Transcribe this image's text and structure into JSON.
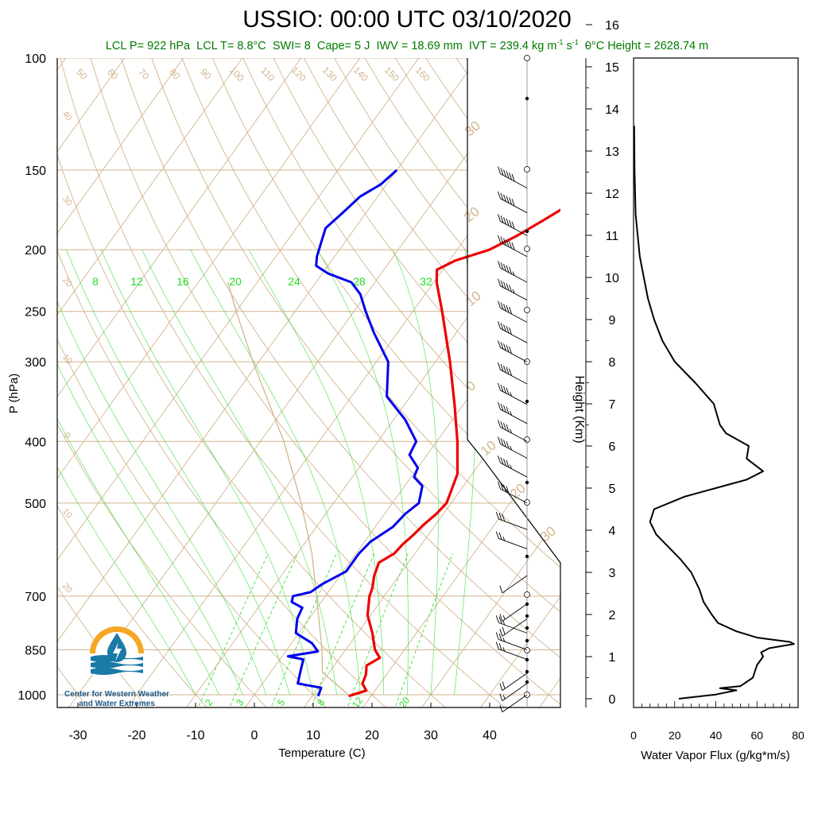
{
  "header": {
    "title": "USSIO: 00:00 UTC 03/10/2020",
    "subtitle": {
      "lcl_p": "LCL P= 922 hPa",
      "lcl_t": "LCL T= 8.8°C",
      "swi": "SWI= 8",
      "cape": "Cape= 5 J",
      "iwv": "IWV = 18.69 mm",
      "ivt_prefix": "IVT = 239.4 kg m",
      "ivt_exp1": "-1",
      "ivt_s": " s",
      "ivt_exp2": "-1",
      "zero_c": "0°C Height = 2628.74 m"
    }
  },
  "logo": {
    "line1": "Center for Western Weather",
    "line2": "and Water Extremes"
  },
  "colors": {
    "temperature": "#ee0000",
    "dewpoint": "#0000ee",
    "mixing_ratio": "#22dd22",
    "background_lines": "#d2b48c",
    "subtitle": "#007a00"
  },
  "chart_data": [
    {
      "type": "skew-t",
      "xlabel": "Temperature (C)",
      "ylabel": "P (hPa)",
      "xticks": [
        "-30",
        "-20",
        "-10",
        "0",
        "10",
        "20",
        "30",
        "40"
      ],
      "xlim": [
        -33,
        45
      ],
      "yticks": [
        {
          "p": 100,
          "label": "100"
        },
        {
          "p": 150,
          "label": "150"
        },
        {
          "p": 200,
          "label": "200"
        },
        {
          "p": 250,
          "label": "250"
        },
        {
          "p": 300,
          "label": "300"
        },
        {
          "p": 400,
          "label": "400"
        },
        {
          "p": 500,
          "label": "500"
        },
        {
          "p": 700,
          "label": "700"
        },
        {
          "p": 850,
          "label": "850"
        },
        {
          "p": 1000,
          "label": "1000"
        }
      ],
      "ylim": [
        1050,
        100
      ],
      "temperature": [
        {
          "p": 1005,
          "t": 16.2
        },
        {
          "p": 985,
          "t": 18.5
        },
        {
          "p": 960,
          "t": 17.0
        },
        {
          "p": 930,
          "t": 16.5
        },
        {
          "p": 900,
          "t": 15.5
        },
        {
          "p": 875,
          "t": 16.8
        },
        {
          "p": 850,
          "t": 15.0
        },
        {
          "p": 800,
          "t": 12.5
        },
        {
          "p": 750,
          "t": 9.5
        },
        {
          "p": 700,
          "t": 7.5
        },
        {
          "p": 680,
          "t": 7.0
        },
        {
          "p": 650,
          "t": 5.8
        },
        {
          "p": 620,
          "t": 5.0
        },
        {
          "p": 600,
          "t": 6.5
        },
        {
          "p": 580,
          "t": 6.8
        },
        {
          "p": 560,
          "t": 7.5
        },
        {
          "p": 540,
          "t": 8.0
        },
        {
          "p": 520,
          "t": 8.8
        },
        {
          "p": 500,
          "t": 9.2
        },
        {
          "p": 450,
          "t": 7.5
        },
        {
          "p": 400,
          "t": 3.5
        },
        {
          "p": 350,
          "t": -1.5
        },
        {
          "p": 300,
          "t": -7.5
        },
        {
          "p": 250,
          "t": -15.0
        },
        {
          "p": 225,
          "t": -19.5
        },
        {
          "p": 215,
          "t": -21.0
        },
        {
          "p": 208,
          "t": -19.0
        },
        {
          "p": 200,
          "t": -14.5
        },
        {
          "p": 190,
          "t": -11.5
        },
        {
          "p": 180,
          "t": -9.0
        },
        {
          "p": 170,
          "t": -6.5
        },
        {
          "p": 160,
          "t": -4.0
        },
        {
          "p": 150,
          "t": -2.5
        }
      ],
      "dewpoint": [
        {
          "p": 1005,
          "t": 11.0
        },
        {
          "p": 975,
          "t": 10.5
        },
        {
          "p": 960,
          "t": 6.0
        },
        {
          "p": 920,
          "t": 5.0
        },
        {
          "p": 880,
          "t": 4.0
        },
        {
          "p": 870,
          "t": 1.0
        },
        {
          "p": 855,
          "t": 5.5
        },
        {
          "p": 830,
          "t": 3.5
        },
        {
          "p": 800,
          "t": -0.5
        },
        {
          "p": 760,
          "t": -2.0
        },
        {
          "p": 730,
          "t": -2.5
        },
        {
          "p": 715,
          "t": -5.0
        },
        {
          "p": 700,
          "t": -5.5
        },
        {
          "p": 690,
          "t": -3.0
        },
        {
          "p": 670,
          "t": -2.0
        },
        {
          "p": 640,
          "t": 0.5
        },
        {
          "p": 600,
          "t": 0.5
        },
        {
          "p": 575,
          "t": 1.0
        },
        {
          "p": 545,
          "t": 3.0
        },
        {
          "p": 520,
          "t": 3.5
        },
        {
          "p": 500,
          "t": 4.5
        },
        {
          "p": 470,
          "t": 3.0
        },
        {
          "p": 455,
          "t": 0.5
        },
        {
          "p": 440,
          "t": 0.0
        },
        {
          "p": 420,
          "t": -3.0
        },
        {
          "p": 400,
          "t": -3.5
        },
        {
          "p": 370,
          "t": -8.0
        },
        {
          "p": 340,
          "t": -14.0
        },
        {
          "p": 300,
          "t": -18.0
        },
        {
          "p": 270,
          "t": -24.0
        },
        {
          "p": 250,
          "t": -28.0
        },
        {
          "p": 235,
          "t": -31.0
        },
        {
          "p": 225,
          "t": -34.0
        },
        {
          "p": 218,
          "t": -39.0
        },
        {
          "p": 212,
          "t": -42.0
        },
        {
          "p": 205,
          "t": -43.0
        },
        {
          "p": 195,
          "t": -44.0
        },
        {
          "p": 185,
          "t": -45.0
        },
        {
          "p": 175,
          "t": -44.0
        },
        {
          "p": 165,
          "t": -43.0
        },
        {
          "p": 158,
          "t": -41.0
        },
        {
          "p": 150,
          "t": -40.0
        }
      ],
      "parcel": [
        {
          "p": 1000,
          "t": 16.0
        },
        {
          "p": 922,
          "t": 8.8
        },
        {
          "p": 850,
          "t": 6.0
        },
        {
          "p": 700,
          "t": -1.5
        },
        {
          "p": 600,
          "t": -7.5
        },
        {
          "p": 500,
          "t": -15.5
        },
        {
          "p": 400,
          "t": -26.0
        },
        {
          "p": 300,
          "t": -41.0
        },
        {
          "p": 250,
          "t": -50.0
        },
        {
          "p": 225,
          "t": -55.0
        }
      ],
      "isotherm_labels": [
        "50",
        "60",
        "70",
        "80",
        "90",
        "100",
        "110",
        "120",
        "130",
        "140",
        "150",
        "160"
      ],
      "theta_labels": [
        "40",
        "30",
        "20",
        "10",
        "0",
        "10",
        "20",
        "30"
      ],
      "theta_e_labels": [
        "30",
        "20",
        "10",
        "0",
        "10",
        "20",
        "30"
      ],
      "mixing_ratio_labels": [
        "8",
        "12",
        "16",
        "20",
        "24",
        "28",
        "32"
      ],
      "mixing_ratio_bottom_labels": [
        "2",
        "3",
        "5",
        "8",
        "12",
        "20"
      ],
      "wind_barbs": [
        {
          "p": 1000,
          "speed": 10
        },
        {
          "p": 960,
          "speed": 15
        },
        {
          "p": 925,
          "speed": 20
        },
        {
          "p": 880,
          "speed": 25
        },
        {
          "p": 850,
          "speed": 25
        },
        {
          "p": 800,
          "speed": 25
        },
        {
          "p": 760,
          "speed": 20
        },
        {
          "p": 720,
          "speed": 15
        },
        {
          "p": 650,
          "speed": 10
        },
        {
          "p": 590,
          "speed": 25
        },
        {
          "p": 550,
          "speed": 30
        },
        {
          "p": 500,
          "speed": 40
        },
        {
          "p": 455,
          "speed": 45
        },
        {
          "p": 425,
          "speed": 45
        },
        {
          "p": 400,
          "speed": 45
        },
        {
          "p": 375,
          "speed": 45
        },
        {
          "p": 350,
          "speed": 45
        },
        {
          "p": 325,
          "speed": 50
        },
        {
          "p": 300,
          "speed": 50
        },
        {
          "p": 280,
          "speed": 50
        },
        {
          "p": 260,
          "speed": 50
        },
        {
          "p": 240,
          "speed": 55
        },
        {
          "p": 225,
          "speed": 55
        },
        {
          "p": 205,
          "speed": 60
        },
        {
          "p": 190,
          "speed": 60
        },
        {
          "p": 175,
          "speed": 60
        },
        {
          "p": 160,
          "speed": 60
        }
      ]
    },
    {
      "type": "line",
      "xlabel": "Water Vapor Flux (g/kg*m/s)",
      "ylabel": "Height (Km)",
      "xticks": [
        "0",
        "20",
        "40",
        "60",
        "80"
      ],
      "xlim": [
        0,
        80
      ],
      "yticks": [
        "0",
        "1",
        "2",
        "3",
        "4",
        "5",
        "6",
        "7",
        "8",
        "9",
        "10",
        "11",
        "12",
        "13",
        "14",
        "15",
        "16"
      ],
      "ylim": [
        -0.25,
        16.3
      ],
      "series": [
        {
          "points": [
            {
              "h": 0.0,
              "v": 22
            },
            {
              "h": 0.1,
              "v": 40
            },
            {
              "h": 0.2,
              "v": 50
            },
            {
              "h": 0.25,
              "v": 42
            },
            {
              "h": 0.3,
              "v": 52
            },
            {
              "h": 0.5,
              "v": 58
            },
            {
              "h": 0.8,
              "v": 60
            },
            {
              "h": 1.0,
              "v": 63
            },
            {
              "h": 1.1,
              "v": 62
            },
            {
              "h": 1.2,
              "v": 66
            },
            {
              "h": 1.3,
              "v": 78
            },
            {
              "h": 1.35,
              "v": 76
            },
            {
              "h": 1.45,
              "v": 60
            },
            {
              "h": 1.6,
              "v": 50
            },
            {
              "h": 1.8,
              "v": 41
            },
            {
              "h": 2.0,
              "v": 38
            },
            {
              "h": 2.3,
              "v": 34
            },
            {
              "h": 2.6,
              "v": 32
            },
            {
              "h": 3.0,
              "v": 28
            },
            {
              "h": 3.3,
              "v": 23
            },
            {
              "h": 3.6,
              "v": 17
            },
            {
              "h": 3.9,
              "v": 11
            },
            {
              "h": 4.2,
              "v": 8
            },
            {
              "h": 4.5,
              "v": 10
            },
            {
              "h": 4.8,
              "v": 25
            },
            {
              "h": 5.0,
              "v": 40
            },
            {
              "h": 5.2,
              "v": 55
            },
            {
              "h": 5.4,
              "v": 63
            },
            {
              "h": 5.7,
              "v": 55
            },
            {
              "h": 6.0,
              "v": 56
            },
            {
              "h": 6.3,
              "v": 45
            },
            {
              "h": 6.5,
              "v": 42
            },
            {
              "h": 7.0,
              "v": 39
            },
            {
              "h": 7.5,
              "v": 30
            },
            {
              "h": 8.0,
              "v": 20
            },
            {
              "h": 8.5,
              "v": 14
            },
            {
              "h": 9.0,
              "v": 10
            },
            {
              "h": 9.5,
              "v": 7
            },
            {
              "h": 10.0,
              "v": 5
            },
            {
              "h": 10.5,
              "v": 3
            },
            {
              "h": 11.0,
              "v": 2
            },
            {
              "h": 11.5,
              "v": 1
            },
            {
              "h": 12.5,
              "v": 0.5
            },
            {
              "h": 13.6,
              "v": 0.3
            }
          ]
        }
      ]
    }
  ]
}
